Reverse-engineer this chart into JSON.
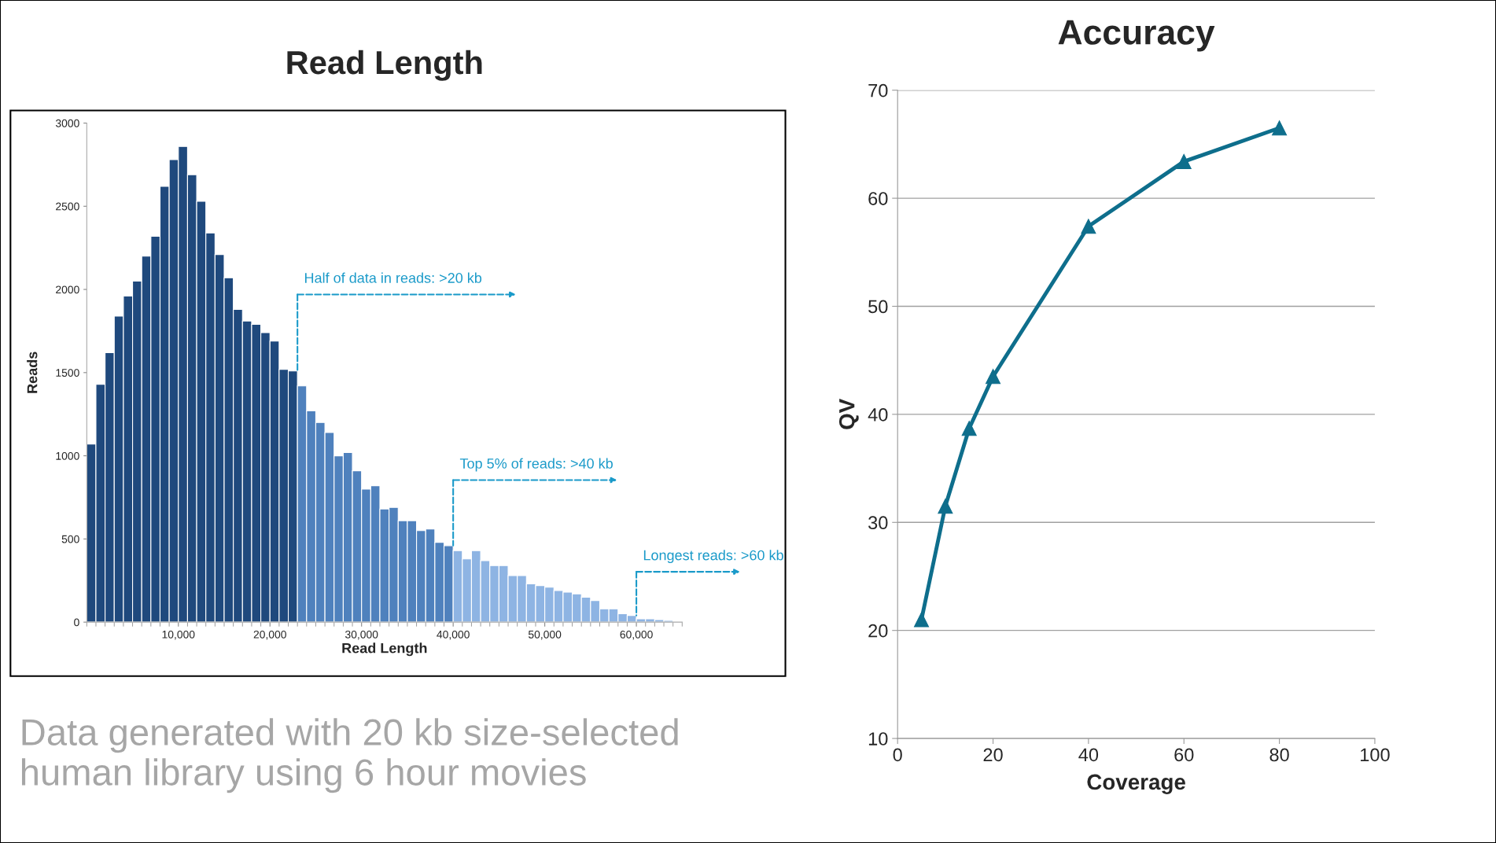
{
  "chart_data": [
    {
      "type": "histogram",
      "title": "Read Length",
      "xlabel": "Read Length",
      "ylabel": "Reads",
      "bins": [
        0,
        1000,
        2000,
        3000,
        4000,
        5000,
        6000,
        7000,
        8000,
        9000,
        10000,
        11000,
        12000,
        13000,
        14000,
        15000,
        16000,
        17000,
        18000,
        19000,
        20000,
        21000,
        22000,
        23000,
        24000,
        25000,
        26000,
        27000,
        28000,
        29000,
        30000,
        31000,
        32000,
        33000,
        34000,
        35000,
        36000,
        37000,
        38000,
        39000,
        40000,
        41000,
        42000,
        43000,
        44000,
        45000,
        46000,
        47000,
        48000,
        49000,
        50000,
        51000,
        52000,
        53000,
        54000,
        55000,
        56000,
        57000,
        58000,
        59000,
        60000,
        61000,
        62000,
        63000,
        64000,
        65000
      ],
      "values": [
        1070,
        1430,
        1620,
        1840,
        1960,
        2050,
        2200,
        2320,
        2620,
        2780,
        2860,
        2690,
        2530,
        2340,
        2210,
        2070,
        1880,
        1810,
        1790,
        1740,
        1690,
        1520,
        1510,
        1420,
        1270,
        1200,
        1140,
        1000,
        1020,
        910,
        800,
        820,
        680,
        690,
        610,
        610,
        550,
        560,
        480,
        460,
        430,
        380,
        430,
        370,
        340,
        340,
        280,
        280,
        230,
        220,
        210,
        190,
        180,
        170,
        150,
        130,
        80,
        80,
        50,
        40,
        20,
        20,
        15,
        10,
        5
      ],
      "colors": [
        "#1f497d",
        "#1f497d",
        "#1f497d",
        "#1f497d",
        "#1f497d",
        "#1f497d",
        "#1f497d",
        "#1f497d",
        "#1f497d",
        "#1f497d",
        "#1f497d",
        "#1f497d",
        "#1f497d",
        "#1f497d",
        "#1f497d",
        "#1f497d",
        "#1f497d",
        "#1f497d",
        "#1f497d",
        "#1f497d",
        "#1f497d",
        "#1f497d",
        "#1f497d",
        "#4f81bd",
        "#4f81bd",
        "#4f81bd",
        "#4f81bd",
        "#4f81bd",
        "#4f81bd",
        "#4f81bd",
        "#4f81bd",
        "#4f81bd",
        "#4f81bd",
        "#4f81bd",
        "#4f81bd",
        "#4f81bd",
        "#4f81bd",
        "#4f81bd",
        "#4f81bd",
        "#4f81bd",
        "#8eb4e3",
        "#8eb4e3",
        "#8eb4e3",
        "#8eb4e3",
        "#8eb4e3",
        "#8eb4e3",
        "#8eb4e3",
        "#8eb4e3",
        "#8eb4e3",
        "#8eb4e3",
        "#8eb4e3",
        "#8eb4e3",
        "#8eb4e3",
        "#8eb4e3",
        "#8eb4e3",
        "#8eb4e3",
        "#8eb4e3",
        "#8eb4e3",
        "#8eb4e3",
        "#8eb4e3",
        "#8eb4e3",
        "#8eb4e3",
        "#8eb4e3",
        "#8eb4e3",
        "#8eb4e3"
      ],
      "xlim": [
        0,
        65000
      ],
      "ylim": [
        0,
        3000
      ],
      "xticks": [
        {
          "value": 10000,
          "label": "10,000"
        },
        {
          "value": 20000,
          "label": "20,000"
        },
        {
          "value": 30000,
          "label": "30,000"
        },
        {
          "value": 40000,
          "label": "40,000"
        },
        {
          "value": 50000,
          "label": "50,000"
        },
        {
          "value": 60000,
          "label": "60,000"
        }
      ],
      "yticks": [
        0,
        500,
        1000,
        1500,
        2000,
        2500,
        3000
      ],
      "annotations": [
        {
          "text": "Half of data in reads: >20 kb",
          "x": 23000,
          "y": 1510
        },
        {
          "text": "Top 5% of reads: >40 kb",
          "x": 40000,
          "y": 460
        },
        {
          "text": "Longest reads: >60 kb",
          "x": 60000,
          "y": 40
        },
        "Data generated with 20 kb size-selected human library using 6 hour movies"
      ]
    },
    {
      "type": "line",
      "title": "Accuracy",
      "xlabel": "Coverage",
      "ylabel": "QV",
      "x": [
        5,
        10,
        15,
        20,
        40,
        60,
        80
      ],
      "series": [
        {
          "color": "#0e6e8c",
          "values": [
            21,
            31.5,
            38.7,
            43.5,
            57.4,
            63.4,
            66.5
          ]
        }
      ],
      "marker": "triangle",
      "line_style": "solid",
      "grid": "y",
      "xlim": [
        0,
        100
      ],
      "ylim": [
        10,
        70
      ],
      "xticks": [
        0,
        20,
        40,
        60,
        80,
        100
      ],
      "yticks": [
        10,
        20,
        30,
        40,
        50,
        60,
        70
      ]
    }
  ]
}
